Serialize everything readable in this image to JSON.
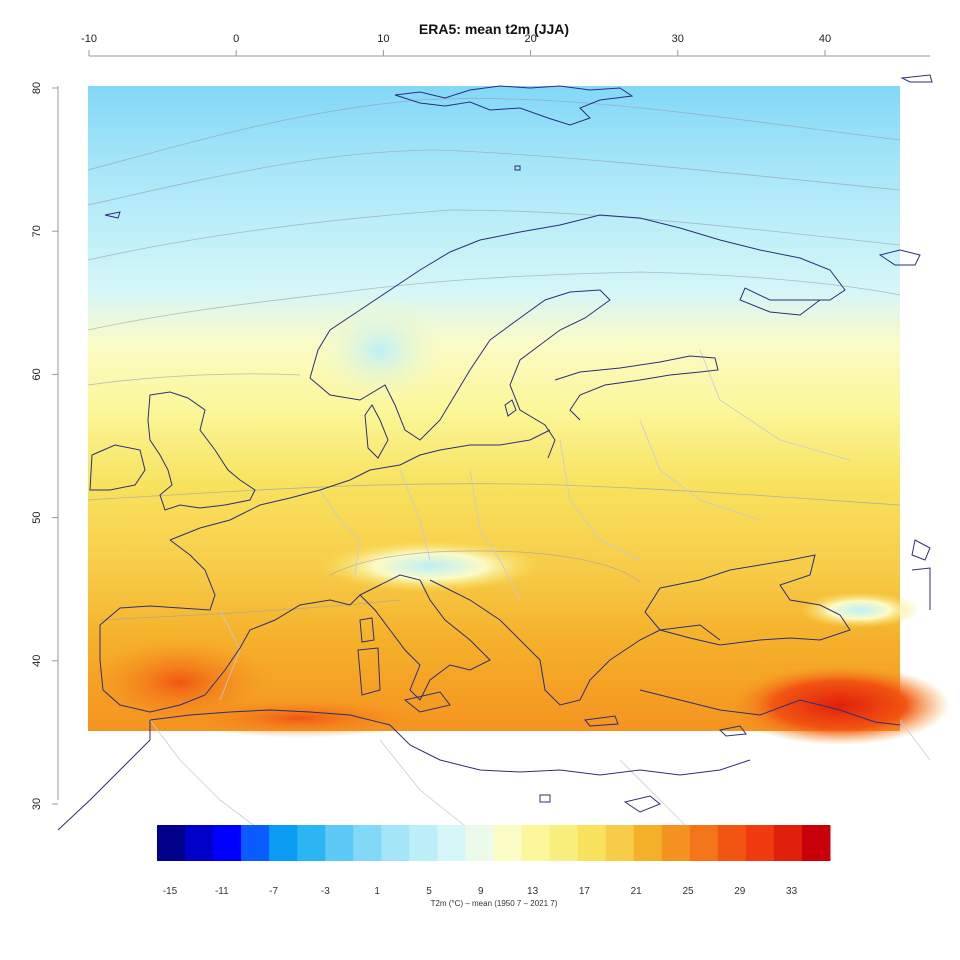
{
  "map": {
    "title": "ERA5: mean t2m (JJA)",
    "lon_ticks": [
      "-10",
      "0",
      "10",
      "20",
      "30",
      "40"
    ],
    "lat_ticks": [
      "80",
      "70",
      "60",
      "50",
      "40",
      "30"
    ],
    "colorbar": {
      "colors": [
        "#00008b",
        "#0000c8",
        "#0000ff",
        "#0a5cff",
        "#0a9cf2",
        "#2bb6f3",
        "#5ccaf5",
        "#82d8f7",
        "#a5e5f8",
        "#bdeff8",
        "#d6f6f7",
        "#ecfbe9",
        "#fbfbc6",
        "#fbf79a",
        "#f8ef7e",
        "#f8e25e",
        "#f7cc48",
        "#f5b02a",
        "#f59320",
        "#f47519",
        "#f25512",
        "#f03a0f",
        "#e0200a",
        "#c8000a"
      ],
      "tick_labels": [
        "-15",
        "-11",
        "-7",
        "-3",
        "1",
        "5",
        "9",
        "13",
        "17",
        "21",
        "25",
        "29",
        "33"
      ],
      "label": "T2m (°C) – mean (1950 7 – 2021 7)"
    }
  }
}
